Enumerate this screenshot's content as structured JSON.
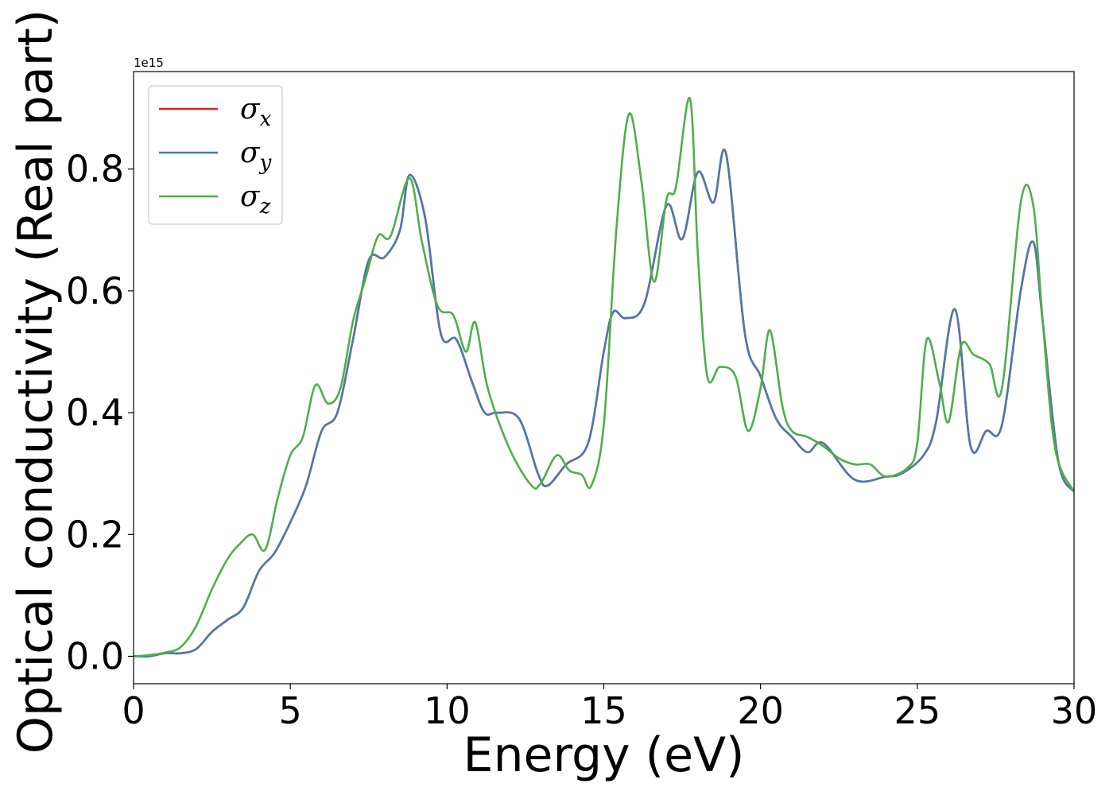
{
  "chart_data": {
    "type": "line",
    "xlabel": "Energy (eV)",
    "ylabel": "Optical conductivity (Real part)",
    "y_offset_label": "1e15",
    "xlim": [
      0,
      30
    ],
    "ylim": [
      -0.045,
      0.96
    ],
    "xticks": [
      0,
      5,
      10,
      15,
      20,
      25,
      30
    ],
    "xtick_labels": [
      "0",
      "5",
      "10",
      "15",
      "20",
      "25",
      "30"
    ],
    "yticks": [
      0.0,
      0.2,
      0.4,
      0.6,
      0.8
    ],
    "ytick_labels": [
      "0.0",
      "0.2",
      "0.4",
      "0.6",
      "0.8"
    ],
    "grid": false,
    "legend_position": "top-left",
    "series": [
      {
        "name": "σ",
        "subscript": "x",
        "color": "#d62728",
        "x": [
          0,
          0.5,
          1.0,
          1.5,
          2.0,
          2.5,
          3.0,
          3.5,
          4.0,
          4.5,
          5.0,
          5.5,
          6.0,
          6.5,
          7.0,
          7.5,
          8.0,
          8.5,
          8.8,
          9.3,
          9.8,
          10.3,
          10.8,
          11.2,
          11.6,
          12.3,
          12.9,
          13.2,
          13.8,
          14.5,
          15.0,
          15.3,
          15.7,
          16.3,
          17.0,
          17.5,
          18.0,
          18.5,
          18.9,
          19.5,
          20.0,
          20.5,
          21.0,
          21.5,
          22.0,
          23.0,
          24.0,
          24.5,
          25.2,
          25.6,
          26.2,
          26.7,
          27.2,
          27.7,
          28.3,
          28.7,
          29.0,
          29.5,
          30.0
        ],
        "values": [
          0.0,
          0.0,
          0.005,
          0.005,
          0.012,
          0.04,
          0.06,
          0.08,
          0.14,
          0.17,
          0.22,
          0.28,
          0.37,
          0.4,
          0.52,
          0.65,
          0.655,
          0.7,
          0.79,
          0.72,
          0.53,
          0.52,
          0.45,
          0.4,
          0.4,
          0.39,
          0.3,
          0.28,
          0.315,
          0.35,
          0.5,
          0.565,
          0.555,
          0.58,
          0.74,
          0.685,
          0.795,
          0.745,
          0.825,
          0.53,
          0.46,
          0.39,
          0.36,
          0.335,
          0.35,
          0.29,
          0.295,
          0.3,
          0.33,
          0.385,
          0.57,
          0.345,
          0.37,
          0.38,
          0.6,
          0.68,
          0.55,
          0.32,
          0.27
        ]
      },
      {
        "name": "σ",
        "subscript": "y",
        "color": "#4e79a7",
        "x": [
          0,
          0.5,
          1.0,
          1.5,
          2.0,
          2.5,
          3.0,
          3.5,
          4.0,
          4.5,
          5.0,
          5.5,
          6.0,
          6.5,
          7.0,
          7.5,
          8.0,
          8.5,
          8.8,
          9.3,
          9.8,
          10.3,
          10.8,
          11.2,
          11.6,
          12.3,
          12.9,
          13.2,
          13.8,
          14.5,
          15.0,
          15.3,
          15.7,
          16.3,
          17.0,
          17.5,
          18.0,
          18.5,
          18.9,
          19.5,
          20.0,
          20.5,
          21.0,
          21.5,
          22.0,
          23.0,
          24.0,
          24.5,
          25.2,
          25.6,
          26.2,
          26.7,
          27.2,
          27.7,
          28.3,
          28.7,
          29.0,
          29.5,
          30.0
        ],
        "values": [
          0.0,
          0.0,
          0.005,
          0.005,
          0.012,
          0.04,
          0.06,
          0.08,
          0.14,
          0.17,
          0.22,
          0.28,
          0.37,
          0.4,
          0.52,
          0.65,
          0.655,
          0.7,
          0.79,
          0.72,
          0.53,
          0.52,
          0.45,
          0.4,
          0.4,
          0.39,
          0.3,
          0.28,
          0.315,
          0.35,
          0.5,
          0.565,
          0.555,
          0.58,
          0.74,
          0.685,
          0.795,
          0.745,
          0.825,
          0.53,
          0.46,
          0.39,
          0.36,
          0.335,
          0.35,
          0.29,
          0.295,
          0.3,
          0.33,
          0.385,
          0.57,
          0.345,
          0.37,
          0.38,
          0.6,
          0.68,
          0.55,
          0.32,
          0.27
        ]
      },
      {
        "name": "σ",
        "subscript": "z",
        "color": "#4daf4a",
        "x": [
          0,
          0.5,
          1.0,
          1.5,
          2.0,
          2.5,
          3.0,
          3.4,
          3.8,
          4.2,
          4.6,
          5.0,
          5.4,
          5.8,
          6.2,
          6.6,
          7.0,
          7.4,
          7.8,
          8.2,
          8.8,
          9.2,
          9.7,
          10.2,
          10.6,
          10.9,
          11.3,
          12.0,
          12.7,
          13.0,
          13.5,
          13.9,
          14.3,
          14.6,
          15.0,
          15.4,
          15.8,
          16.2,
          16.6,
          17.0,
          17.3,
          17.75,
          18.0,
          18.3,
          18.7,
          19.2,
          19.6,
          20.0,
          20.3,
          20.7,
          21.0,
          21.5,
          22.0,
          22.5,
          23.0,
          23.5,
          24.0,
          24.7,
          25.0,
          25.3,
          25.7,
          26.0,
          26.4,
          26.8,
          27.3,
          27.7,
          28.3,
          28.7,
          29.0,
          29.4,
          30.0
        ],
        "values": [
          0.0,
          0.002,
          0.006,
          0.015,
          0.05,
          0.11,
          0.16,
          0.185,
          0.2,
          0.175,
          0.26,
          0.33,
          0.36,
          0.445,
          0.415,
          0.44,
          0.55,
          0.62,
          0.69,
          0.69,
          0.785,
          0.68,
          0.575,
          0.56,
          0.5,
          0.548,
          0.44,
          0.34,
          0.28,
          0.285,
          0.33,
          0.305,
          0.298,
          0.28,
          0.38,
          0.7,
          0.89,
          0.78,
          0.615,
          0.75,
          0.77,
          0.915,
          0.66,
          0.46,
          0.475,
          0.46,
          0.37,
          0.44,
          0.535,
          0.41,
          0.37,
          0.36,
          0.345,
          0.325,
          0.315,
          0.315,
          0.295,
          0.31,
          0.35,
          0.52,
          0.45,
          0.385,
          0.51,
          0.495,
          0.48,
          0.44,
          0.745,
          0.74,
          0.55,
          0.34,
          0.27
        ]
      }
    ]
  }
}
